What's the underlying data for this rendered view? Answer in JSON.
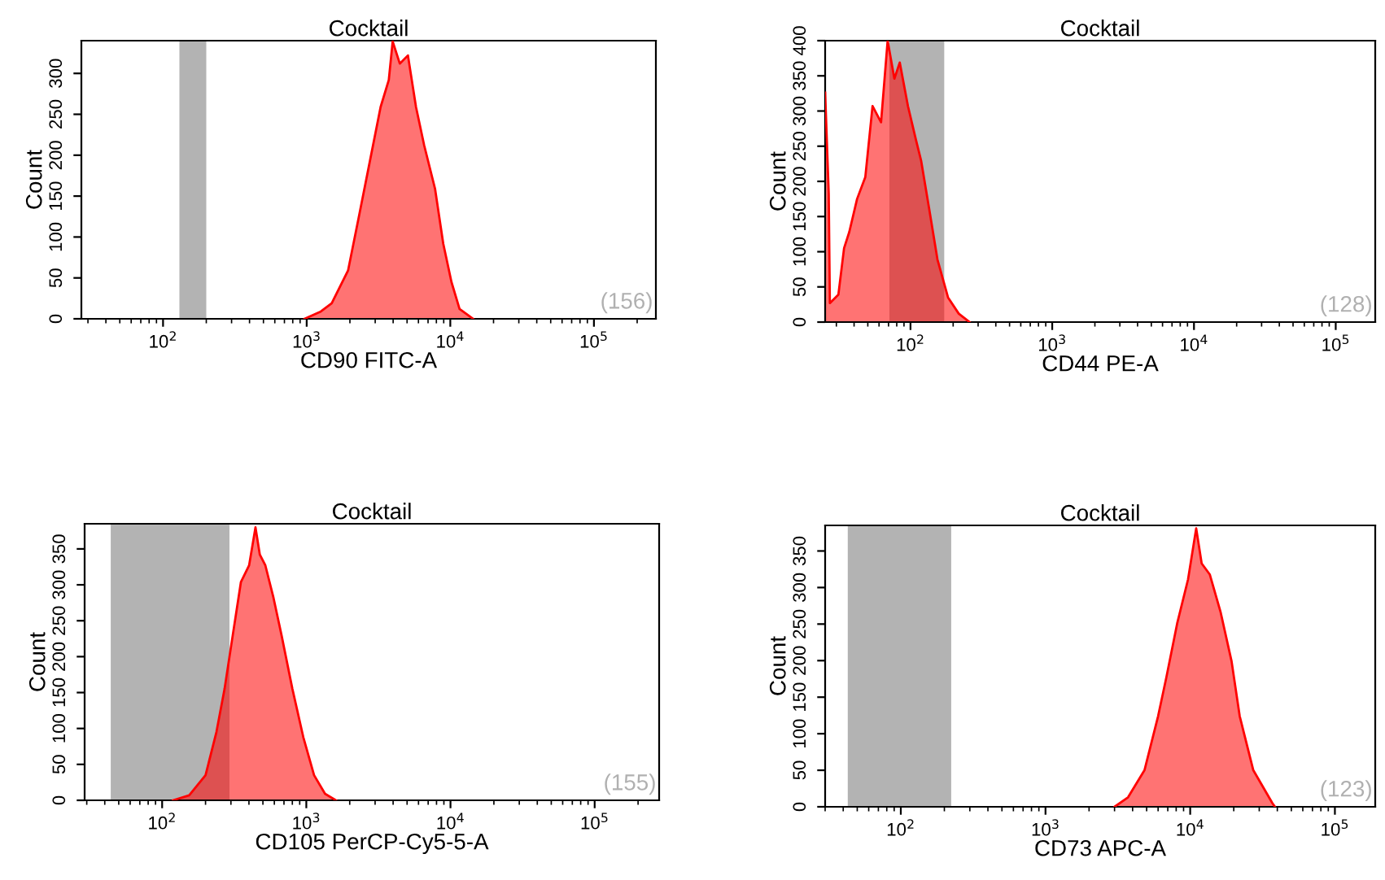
{
  "chart_data": [
    {
      "type": "area",
      "title": "Cocktail",
      "xlabel": "CD90 FITC-A",
      "ylabel": "Count",
      "log": "x",
      "xlim": [
        27,
        270000
      ],
      "xticks": [
        {
          "value": 100,
          "label": "10$^{2}$"
        },
        {
          "value": 1000,
          "label": "10$^{3}$"
        },
        {
          "value": 10000,
          "label": "10$^{4}$"
        },
        {
          "value": 100000,
          "label": "10$^{5}$"
        }
      ],
      "ylim": [
        0,
        340
      ],
      "yticks": [
        0,
        50,
        100,
        150,
        200,
        250,
        300
      ],
      "x": [
        966,
        1256,
        1494,
        1941,
        2310,
        2750,
        3272,
        3730,
        3970,
        4450,
        5070,
        5770,
        6580,
        7830,
        8930,
        10190,
        11600,
        14420
      ],
      "series": [
        {
          "color": "#ff0000",
          "values": [
            0,
            9,
            19,
            59,
            125,
            192,
            259,
            292,
            339,
            312,
            322,
            259,
            212,
            159,
            92,
            45,
            12,
            0
          ]
        }
      ],
      "bands": [
        {
          "axis": "x",
          "from": 130,
          "to": 200,
          "color": "#b3b3b3"
        }
      ],
      "annotations": [
        "(156)"
      ]
    },
    {
      "type": "area",
      "title": "Cocktail",
      "xlabel": "CD44 PE-A",
      "ylabel": "Count",
      "log": "x",
      "xlim": [
        25,
        190000
      ],
      "xticks": [
        {
          "value": 100,
          "label": "10$^{2}$"
        },
        {
          "value": 1000,
          "label": "10$^{3}$"
        },
        {
          "value": 10000,
          "label": "10$^{4}$"
        },
        {
          "value": 100000,
          "label": "10$^{5}$"
        }
      ],
      "ylim": [
        0,
        400
      ],
      "yticks": [
        0,
        50,
        100,
        150,
        200,
        250,
        300,
        350,
        400
      ],
      "x": [
        25,
        26.5,
        27,
        31,
        34,
        37,
        42,
        48,
        54,
        62,
        69,
        77,
        84,
        96,
        109,
        119,
        136,
        155,
        184,
        219,
        261
      ],
      "series": [
        {
          "color": "#ff0000",
          "values": [
            326,
            183,
            27,
            39,
            105,
            128,
            175,
            206,
            307,
            284,
            400,
            346,
            369,
            307,
            260,
            229,
            159,
            89,
            35,
            12,
            0
          ]
        }
      ],
      "bands": [
        {
          "axis": "x",
          "from": 71,
          "to": 173,
          "color": "#b3b3b3"
        }
      ],
      "annotations": [
        "(128)"
      ]
    },
    {
      "type": "area",
      "title": "Cocktail",
      "xlabel": "CD105 PerCP-Cy5-5-A",
      "ylabel": "Count",
      "log": "x",
      "xlim": [
        29,
        280000
      ],
      "xticks": [
        {
          "value": 100,
          "label": "10$^{2}$"
        },
        {
          "value": 1000,
          "label": "10$^{3}$"
        },
        {
          "value": 10000,
          "label": "10$^{4}$"
        },
        {
          "value": 100000,
          "label": "10$^{5}$"
        }
      ],
      "ylim": [
        0,
        385
      ],
      "yticks": [
        0,
        50,
        100,
        150,
        200,
        250,
        300,
        350
      ],
      "x": [
        119,
        154,
        200,
        238,
        271,
        309,
        352,
        401,
        444,
        476,
        520,
        592,
        673,
        801,
        953,
        1132,
        1349,
        1605
      ],
      "series": [
        {
          "color": "#ff0000",
          "values": [
            0,
            7,
            35,
            95,
            155,
            230,
            304,
            327,
            380,
            342,
            327,
            282,
            230,
            155,
            88,
            35,
            9,
            0
          ]
        }
      ],
      "bands": [
        {
          "axis": "x",
          "from": 44,
          "to": 293,
          "color": "#b3b3b3"
        }
      ],
      "annotations": [
        "(155)"
      ]
    },
    {
      "type": "area",
      "title": "Cocktail",
      "xlabel": "CD73 APC-A",
      "ylabel": "Count",
      "log": "x",
      "xlim": [
        30,
        190000
      ],
      "xticks": [
        {
          "value": 100,
          "label": "10$^{2}$"
        },
        {
          "value": 1000,
          "label": "10$^{3}$"
        },
        {
          "value": 10000,
          "label": "10$^{4}$"
        },
        {
          "value": 100000,
          "label": "10$^{5}$"
        }
      ],
      "ylim": [
        0,
        385
      ],
      "yticks": [
        0,
        50,
        100,
        150,
        200,
        250,
        300,
        350
      ],
      "x": [
        3000,
        3720,
        4830,
        6000,
        6840,
        8130,
        9660,
        11000,
        12000,
        13650,
        16240,
        19320,
        21990,
        27300,
        36980,
        38550
      ],
      "series": [
        {
          "color": "#ff0000",
          "values": [
            0,
            13,
            50,
            124,
            177,
            251,
            311,
            381,
            333,
            318,
            266,
            199,
            124,
            50,
            5,
            0
          ]
        }
      ],
      "bands": [
        {
          "axis": "x",
          "from": 43,
          "to": 223,
          "color": "#b3b3b3"
        }
      ],
      "annotations": [
        "(123)"
      ]
    }
  ]
}
